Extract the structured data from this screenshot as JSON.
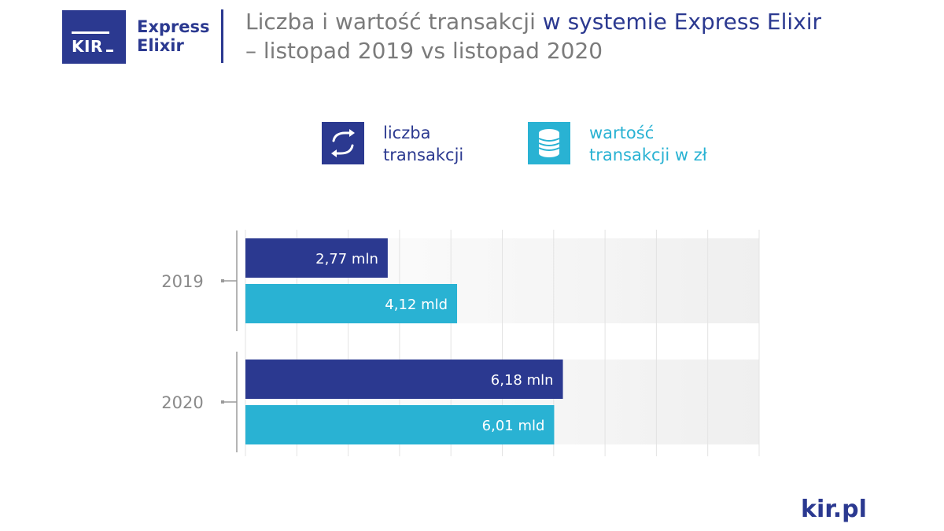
{
  "logo": {
    "mark": "KIR",
    "brand_line1": "Express",
    "brand_line2": "Elixir"
  },
  "title": {
    "part1": "Liczba i wartość transakcji ",
    "part2": "w systemie Express Elixir",
    "line2": "– listopad 2019 vs listopad 2020"
  },
  "legend": [
    {
      "icon": "arrows-exchange-icon",
      "line1": "liczba",
      "line2": "transakcji",
      "color": "#2b3990"
    },
    {
      "icon": "coins-stack-icon",
      "line1": "wartość",
      "line2": "transakcji w zł",
      "color": "#29b2d3"
    }
  ],
  "footer": "kir.pl",
  "chart_data": {
    "type": "bar",
    "orientation": "horizontal",
    "categories": [
      "2019",
      "2020"
    ],
    "series": [
      {
        "name": "liczba transakcji",
        "color": "#2b3990",
        "values": [
          2.77,
          6.18
        ],
        "labels": [
          "2,77 mln",
          "6,18 mln"
        ]
      },
      {
        "name": "wartość transakcji w zł",
        "color": "#29b2d3",
        "values": [
          4.12,
          6.01
        ],
        "labels": [
          "4,12 mld",
          "6,01 mld"
        ]
      }
    ],
    "xlim": [
      0,
      10
    ],
    "grid": true,
    "legend_position": "top"
  }
}
